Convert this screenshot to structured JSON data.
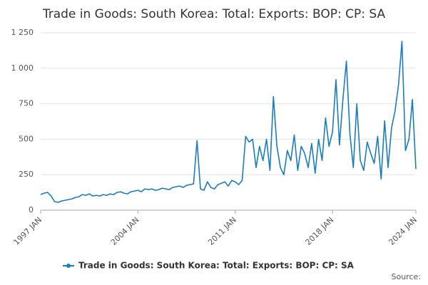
{
  "chart_data": {
    "type": "line",
    "title": "Trade in Goods: South Korea: Total: Exports: BOP: CP: SA",
    "source": "Source:",
    "x": [
      "1997 JAN",
      "1997 APR",
      "1997 JUL",
      "1997 OCT",
      "1998 JAN",
      "1998 APR",
      "1998 JUL",
      "1998 OCT",
      "1999 JAN",
      "1999 APR",
      "1999 JUL",
      "1999 OCT",
      "2000 JAN",
      "2000 APR",
      "2000 JUL",
      "2000 OCT",
      "2001 JAN",
      "2001 APR",
      "2001 JUL",
      "2001 OCT",
      "2002 JAN",
      "2002 APR",
      "2002 JUL",
      "2002 OCT",
      "2003 JAN",
      "2003 APR",
      "2003 JUL",
      "2003 OCT",
      "2004 JAN",
      "2004 APR",
      "2004 JUL",
      "2004 OCT",
      "2005 JAN",
      "2005 APR",
      "2005 JUL",
      "2005 OCT",
      "2006 JAN",
      "2006 APR",
      "2006 JUL",
      "2006 OCT",
      "2007 JAN",
      "2007 APR",
      "2007 JUL",
      "2007 OCT",
      "2008 JAN",
      "2008 APR",
      "2008 JUL",
      "2008 OCT",
      "2009 JAN",
      "2009 APR",
      "2009 JUL",
      "2009 OCT",
      "2010 JAN",
      "2010 APR",
      "2010 JUL",
      "2010 OCT",
      "2011 JAN",
      "2011 APR",
      "2011 JUL",
      "2011 OCT",
      "2012 JAN",
      "2012 APR",
      "2012 JUL",
      "2012 OCT",
      "2013 JAN",
      "2013 APR",
      "2013 JUL",
      "2013 OCT",
      "2014 JAN",
      "2014 APR",
      "2014 JUL",
      "2014 OCT",
      "2015 JAN",
      "2015 APR",
      "2015 JUL",
      "2015 OCT",
      "2016 JAN",
      "2016 APR",
      "2016 JUL",
      "2016 OCT",
      "2017 JAN",
      "2017 APR",
      "2017 JUL",
      "2017 OCT",
      "2018 JAN",
      "2018 APR",
      "2018 JUL",
      "2018 OCT",
      "2019 JAN",
      "2019 APR",
      "2019 JUL",
      "2019 OCT",
      "2020 JAN",
      "2020 APR",
      "2020 JUL",
      "2020 OCT",
      "2021 JAN",
      "2021 APR",
      "2021 JUL",
      "2021 OCT",
      "2022 JAN",
      "2022 APR",
      "2022 JUL",
      "2022 OCT",
      "2023 JAN",
      "2023 APR",
      "2023 JUL",
      "2023 OCT",
      "2024 JAN"
    ],
    "series": [
      {
        "name": "Trade in Goods: South Korea: Total: Exports: BOP: CP: SA",
        "color": "#1a7dbf",
        "values": [
          110,
          120,
          125,
          100,
          60,
          55,
          65,
          70,
          75,
          80,
          90,
          95,
          110,
          105,
          115,
          100,
          105,
          100,
          110,
          105,
          115,
          110,
          125,
          130,
          120,
          115,
          130,
          135,
          140,
          130,
          150,
          145,
          150,
          140,
          145,
          155,
          150,
          145,
          160,
          165,
          170,
          160,
          175,
          180,
          185,
          490,
          150,
          140,
          200,
          160,
          150,
          180,
          190,
          200,
          170,
          210,
          200,
          180,
          210,
          520,
          480,
          500,
          300,
          450,
          350,
          500,
          280,
          800,
          450,
          300,
          250,
          420,
          350,
          530,
          280,
          450,
          400,
          300,
          470,
          260,
          500,
          350,
          650,
          450,
          550,
          920,
          460,
          780,
          1050,
          540,
          300,
          750,
          350,
          280,
          480,
          400,
          330,
          520,
          220,
          630,
          300,
          580,
          700,
          880,
          1190,
          420,
          500,
          780,
          290
        ]
      }
    ],
    "xticks": [
      "1997 JAN",
      "2004 JAN",
      "2011 JAN",
      "2018 JAN",
      "2024 JAN"
    ],
    "ylim": [
      0,
      1250
    ],
    "yticks": [
      0,
      250,
      500,
      750,
      {
        "value": 1000,
        "label": "1 000"
      },
      {
        "value": 1250,
        "label": "1 250"
      }
    ],
    "grid": true,
    "legend": "bottom"
  }
}
